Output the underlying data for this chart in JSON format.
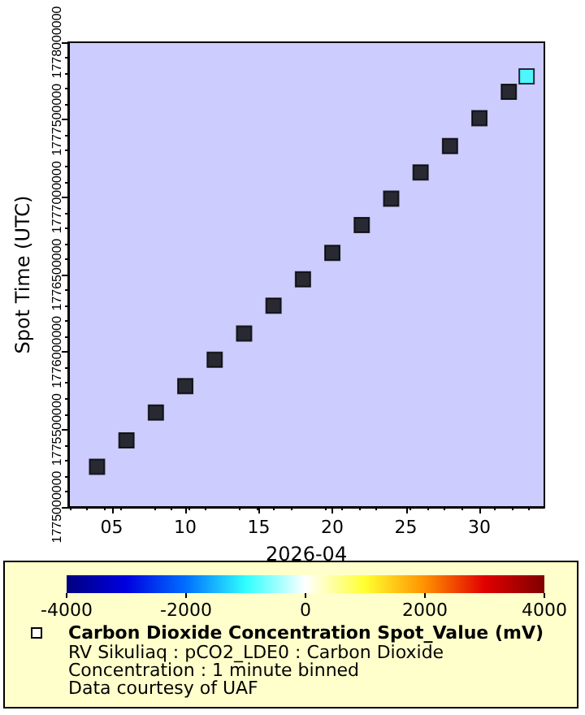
{
  "chart_data": {
    "type": "scatter",
    "xlabel": "2026-04",
    "ylabel": "Spot Time (UTC)",
    "x": [
      "2026-04-04",
      "2026-04-06",
      "2026-04-08",
      "2026-04-10",
      "2026-04-12",
      "2026-04-14",
      "2026-04-16",
      "2026-04-18",
      "2026-04-20",
      "2026-04-22",
      "2026-04-24",
      "2026-04-26",
      "2026-04-28",
      "2026-04-30",
      "2026-05-02",
      "2026-05-03T05:00"
    ],
    "series": [
      {
        "color": "#000000",
        "values": [
          1775260000,
          1775430000,
          1775610000,
          1775780000,
          1775950000,
          1776120000,
          1776300000,
          1776470000,
          1776640000,
          1776820000,
          1776990000,
          1777160000,
          1777330000,
          1777510000,
          1777680000,
          1777780000
        ],
        "cvalues": [
          null,
          null,
          null,
          null,
          null,
          null,
          null,
          null,
          null,
          null,
          null,
          null,
          null,
          null,
          null,
          -1000
        ]
      }
    ],
    "xlim": [
      "2026-04-02T01:00",
      "2026-05-04T10:00"
    ],
    "xticks": [
      {
        "value": "2026-04-05",
        "label": "05"
      },
      {
        "value": "2026-04-10",
        "label": "10"
      },
      {
        "value": "2026-04-15",
        "label": "15"
      },
      {
        "value": "2026-04-20",
        "label": "20"
      },
      {
        "value": "2026-04-25",
        "label": "25"
      },
      {
        "value": "2026-04-30",
        "label": "30"
      }
    ],
    "ylim": [
      1775000000,
      1778000000
    ],
    "yticks": [
      1775000000,
      1775500000,
      1776000000,
      1776500000,
      1777000000,
      1777500000,
      1778000000
    ],
    "clim": [
      -4000,
      4000
    ],
    "cticks": [
      -4000,
      -2000,
      0,
      2000,
      4000
    ],
    "clabel": "Carbon Dioxide Concentration Spot_Value (mV)",
    "annotations": [
      "RV Sikuliaq : pCO2_LDE0 : Carbon Dioxide Concentration : 1 minute binned",
      "Data courtesy of UAF"
    ],
    "marker": "square"
  }
}
